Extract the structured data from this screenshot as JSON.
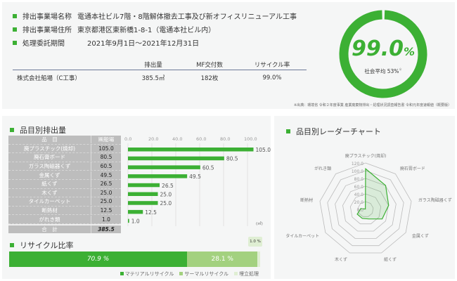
{
  "info": [
    {
      "label": "排出事業場名称",
      "value": "電通本社ビル7階・8階解体撤去工事及び新オフィスリニューアル工事"
    },
    {
      "label": "排出事業場住所",
      "value": "東京都港区東新橋1-8-1（電通本社ビル内）"
    },
    {
      "label": "処理委託期間",
      "value": "2021年9月1日〜2021年12月31日"
    }
  ],
  "summary_table": {
    "headers": [
      "",
      "排出量",
      "MF交付数",
      "リサイクル率"
    ],
    "row": [
      "株式会社船場（C工事）",
      "385.5㎥",
      "182枚",
      "99.0%"
    ]
  },
  "donut": {
    "value_label": "99.0",
    "unit": "%",
    "value": 99.0,
    "average_label": "社会平均 53%",
    "note_mark": "※",
    "color": "#3cb034"
  },
  "source_note": "※出典：環境省 令和２年度事業 産業廃棄物排出・処理状況調査報告書 令和元年度速報値（概要版）",
  "emission": {
    "title": "品目別排出量",
    "col_item": "品　目",
    "col_site": "㈱船場",
    "total_label": "合　計",
    "total": "385.5",
    "unit": "(㎥)"
  },
  "chart_data": [
    {
      "type": "bar",
      "orientation": "horizontal",
      "categories": [
        "廃プラスチック(焼却)",
        "廃石膏ボード",
        "ガラス陶磁器くず",
        "金属くず",
        "紙くず",
        "木くず",
        "タイルカーペット",
        "断熱材",
        "がれき類"
      ],
      "values": [
        105.0,
        80.5,
        60.5,
        49.5,
        26.5,
        25.0,
        25.0,
        12.5,
        1.0
      ],
      "value_labels": [
        "105.0",
        "80.5",
        "60.5",
        "49.5",
        "26.5",
        "25.0",
        "25.0",
        "12.5",
        "1.0"
      ],
      "xlim": [
        0,
        100
      ],
      "ticks": [
        "0.0",
        "20.0",
        "40.0",
        "60.0",
        "80.0",
        "100.0"
      ],
      "grid": true,
      "color": "#3cb034"
    },
    {
      "type": "radar",
      "title": "品目別レーダーチャート",
      "categories": [
        "廃プラスチック(焼却)",
        "廃石膏ボード",
        "ガラス陶磁器くず",
        "金属くず",
        "紙くず",
        "木くず",
        "タイルカーペット",
        "断熱材",
        "がれき類"
      ],
      "values": [
        105.0,
        80.5,
        60.5,
        49.5,
        26.5,
        25.0,
        25.0,
        12.5,
        1.0
      ],
      "rlim": [
        0,
        120
      ],
      "ticks": [
        "0.0",
        "20.0",
        "40.0",
        "60.0",
        "80.0",
        "100.0",
        "120.0"
      ],
      "color": "#3cb034"
    },
    {
      "type": "bar",
      "stacked": true,
      "title": "リサイクル比率",
      "series": [
        {
          "name": "マテリアルリサイクル",
          "value": 70.9,
          "label": "70.9 %",
          "color": "#3cb034"
        },
        {
          "name": "サーマルリサイクル",
          "value": 28.1,
          "label": "28.1 %",
          "color": "#a3d17f"
        },
        {
          "name": "埋立処理",
          "value": 1.0,
          "label": "1.0 %",
          "color": "#dfeed3"
        }
      ]
    }
  ]
}
